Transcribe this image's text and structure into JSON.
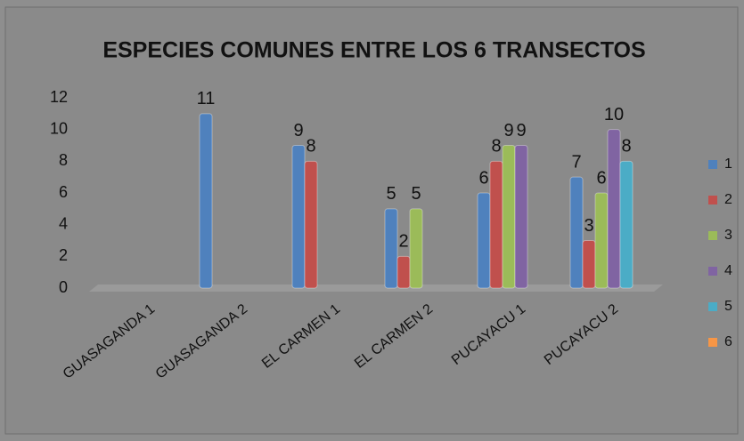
{
  "chart_data": {
    "type": "bar",
    "title": "ESPECIES COMUNES ENTRE LOS 6 TRANSECTOS",
    "categories": [
      "GUASAGANDA 1",
      "GUASAGANDA 2",
      "EL CARMEN 1",
      "EL CARMEN 2",
      "PUCAYACU 1",
      "PUCAYACU 2"
    ],
    "series": [
      {
        "name": "1",
        "color": "#4f81bd",
        "values": [
          null,
          11,
          9,
          5,
          6,
          7
        ]
      },
      {
        "name": "2",
        "color": "#c0504d",
        "values": [
          null,
          null,
          8,
          2,
          8,
          3
        ]
      },
      {
        "name": "3",
        "color": "#9bbb59",
        "values": [
          null,
          null,
          null,
          5,
          9,
          6
        ]
      },
      {
        "name": "4",
        "color": "#8064a2",
        "values": [
          null,
          null,
          null,
          null,
          9,
          10
        ]
      },
      {
        "name": "5",
        "color": "#4bacc6",
        "values": [
          null,
          null,
          null,
          null,
          null,
          8
        ]
      },
      {
        "name": "6",
        "color": "#f79646",
        "values": [
          null,
          null,
          null,
          null,
          null,
          null
        ]
      }
    ],
    "ylim": [
      0,
      12
    ],
    "yticks": [
      0,
      2,
      4,
      6,
      8,
      10,
      12
    ],
    "grid": false,
    "legend": "right"
  }
}
